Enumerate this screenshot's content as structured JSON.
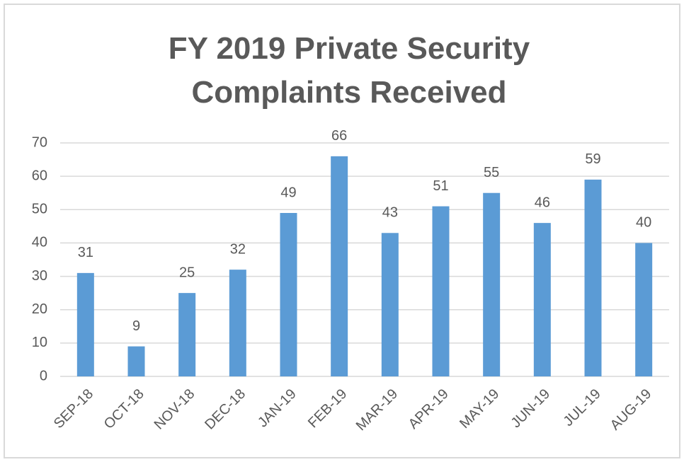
{
  "chart_data": {
    "type": "bar",
    "title": "FY 2019 Private Security Complaints Received",
    "categories": [
      "SEP-18",
      "OCT-18",
      "NOV-18",
      "DEC-18",
      "JAN-19",
      "FEB-19",
      "MAR-19",
      "APR-19",
      "MAY-19",
      "JUN-19",
      "JUL-19",
      "AUG-19"
    ],
    "values": [
      31,
      9,
      25,
      32,
      49,
      66,
      43,
      51,
      55,
      46,
      59,
      40
    ],
    "color": "#5b9bd5",
    "ylim": [
      0,
      70
    ],
    "yticks": [
      0,
      10,
      20,
      30,
      40,
      50,
      60,
      70
    ],
    "grid": true
  }
}
